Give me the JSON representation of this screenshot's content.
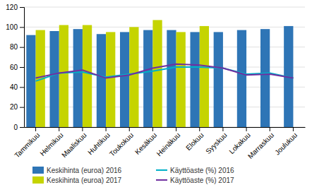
{
  "chart_data": {
    "type": "bar",
    "categories": [
      "Tammikuu",
      "Helmikuu",
      "Maaliskuu",
      "Huhtikuu",
      "Toukokuu",
      "Kesäkuu",
      "Heinäkuu",
      "Elokuu",
      "Syyskuu",
      "Lokakuu",
      "Marraskuu",
      "Joulukuu"
    ],
    "series": [
      {
        "name": "Keskihinta (euroa) 2016",
        "type": "bar",
        "color": "#2e75b6",
        "values": [
          92,
          96,
          98,
          93,
          95,
          97,
          97,
          95,
          95,
          97,
          98,
          101
        ]
      },
      {
        "name": "Keskihinta (euroa) 2017",
        "type": "bar",
        "color": "#c5d400",
        "values": [
          97,
          102,
          102,
          95,
          100,
          107,
          95,
          101,
          null,
          null,
          null,
          null
        ]
      },
      {
        "name": "Käyttöaste (%) 2016",
        "type": "line",
        "color": "#00b0c8",
        "values": [
          46,
          54,
          55,
          50,
          53,
          56,
          60,
          60,
          59,
          53,
          54,
          49
        ]
      },
      {
        "name": "Käyttöaste (%) 2017",
        "type": "line",
        "color": "#7030a0",
        "values": [
          49,
          54,
          57,
          49,
          52,
          59,
          63,
          62,
          59,
          52,
          53,
          49
        ]
      }
    ],
    "ylim": [
      0,
      120
    ],
    "yticks": [
      0,
      20,
      40,
      60,
      80,
      100,
      120
    ],
    "grid": true,
    "legend": "bottom"
  }
}
